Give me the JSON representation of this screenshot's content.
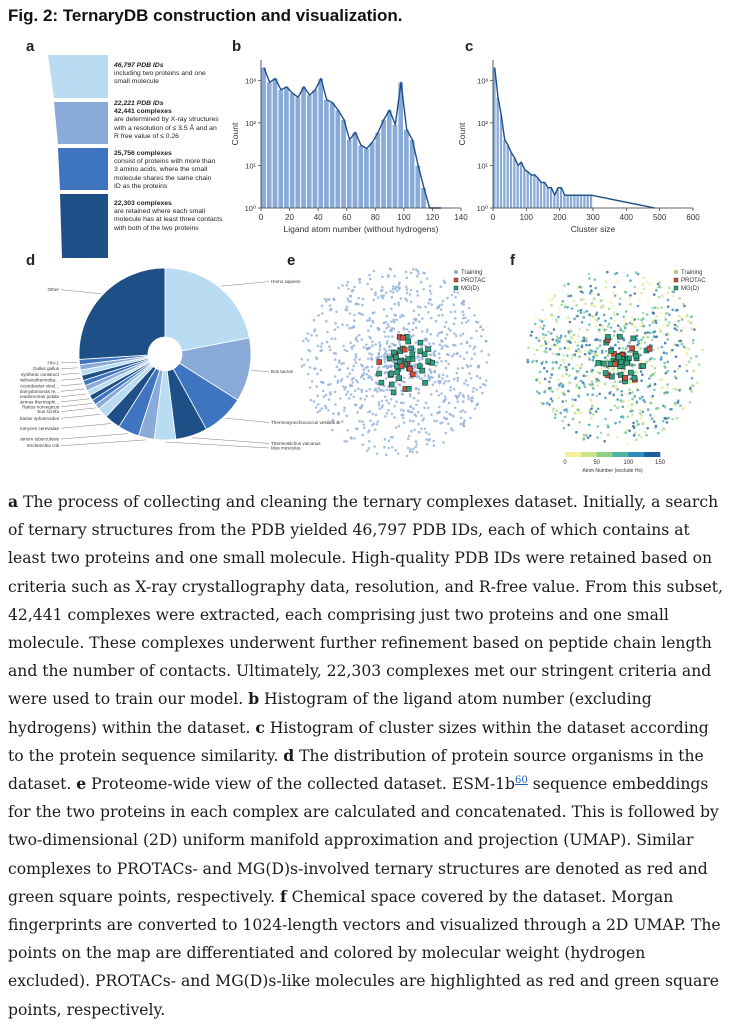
{
  "figure_title": "Fig. 2: TernaryDB construction and visualization.",
  "panel_labels": {
    "a": "a",
    "b": "b",
    "c": "c",
    "d": "d",
    "e": "e",
    "f": "f"
  },
  "funnel": {
    "colors": [
      "#b9dcf2",
      "#8aabd8",
      "#3f75c0",
      "#1e4f86"
    ],
    "steps": [
      {
        "bold": "46,797 PDB IDs",
        "text": [
          "including two proteins and one",
          "small molecule"
        ]
      },
      {
        "bold": "22,221 PDB IDs",
        "bold2": "42,441 complexes",
        "text": [
          "are determined by X-ray structures",
          "with a resolution of ≤ 3.5 Å and an",
          "R free value of ≤ 0.26"
        ]
      },
      {
        "bold": "25,756 complexes",
        "text": [
          "consist of proteins with more than",
          "3 amino acids, where the small",
          "molecule shares the same chain",
          "ID as the proteins"
        ]
      },
      {
        "bold": "22,303 complexes",
        "text": [
          "are retained where each small",
          "molecule has at least three contacts",
          "with both of the two proteins"
        ]
      }
    ]
  },
  "chart_data": [
    {
      "type": "bar",
      "panel": "b",
      "scale": "log",
      "xlabel": "Ligand atom number (without hydrogens)",
      "ylabel": "Count",
      "xlim": [
        0,
        140
      ],
      "ylim": [
        1,
        3000
      ],
      "xticks": [
        "0",
        "20",
        "40",
        "60",
        "80",
        "100",
        "120",
        "140"
      ],
      "yticks": [
        "10⁰",
        "10¹",
        "10²",
        "10³"
      ],
      "bin_width": 4,
      "bin_starts": [
        0,
        4,
        8,
        12,
        16,
        20,
        24,
        28,
        32,
        36,
        40,
        44,
        48,
        52,
        56,
        60,
        64,
        68,
        72,
        76,
        80,
        84,
        88,
        92,
        96,
        100,
        104,
        108,
        112,
        116,
        120,
        124
      ],
      "values": [
        2000,
        900,
        1100,
        600,
        700,
        500,
        400,
        700,
        450,
        600,
        1100,
        350,
        300,
        200,
        120,
        40,
        60,
        30,
        25,
        35,
        60,
        120,
        200,
        90,
        900,
        70,
        40,
        10,
        3,
        1,
        1,
        1
      ],
      "color": "#8aabd8",
      "line_color": "#1e4f86"
    },
    {
      "type": "bar",
      "panel": "c",
      "scale": "log",
      "xlabel": "Cluster size",
      "ylabel": "Count",
      "xlim": [
        0,
        600
      ],
      "ylim": [
        1,
        3000
      ],
      "xticks": [
        "0",
        "100",
        "200",
        "300",
        "400",
        "500",
        "600"
      ],
      "yticks": [
        "10⁰",
        "10¹",
        "10²",
        "10³"
      ],
      "bin_width": 10,
      "bin_starts": [
        0,
        10,
        20,
        30,
        40,
        50,
        60,
        70,
        80,
        90,
        100,
        110,
        120,
        130,
        140,
        150,
        160,
        170,
        180,
        190,
        200,
        210,
        220,
        230,
        240,
        250,
        260,
        270,
        280,
        290,
        480
      ],
      "values": [
        2000,
        400,
        150,
        40,
        30,
        20,
        15,
        10,
        12,
        8,
        7,
        6,
        6,
        5,
        4,
        4,
        3,
        3,
        2,
        3,
        3,
        2,
        2,
        2,
        2,
        2,
        2,
        2,
        2,
        2,
        1
      ],
      "color": "#8aabd8",
      "line_color": "#1e4f86"
    },
    {
      "type": "pie",
      "panel": "d",
      "labels": [
        "Homo sapiens",
        "Bos taurus",
        "Thermosynechococcus vestitus BP",
        "Thermostichus vulcanus",
        "Mus musculus",
        "Escherichia coli",
        "Mycobacterium tuberculosis",
        "Saccharomyces cerevisiae",
        "Cereibacter sphaeroides",
        "Sus scrofa",
        "Rattus norvegicus",
        "Thermus thermophi...",
        "Pseudomonas putida",
        "Chlamydomonas re...",
        "Acetobacter vinel...",
        "Methanothermoba...",
        "synthetic construct",
        "Gallus gallus",
        "HIV-1",
        "Other"
      ],
      "values": [
        22,
        12,
        8,
        6,
        4,
        3,
        4,
        3,
        2,
        1,
        1,
        1,
        1,
        1,
        1,
        1,
        1,
        1,
        1,
        26
      ],
      "colors": [
        "#b9dcf2",
        "#8aabd8",
        "#3f75c0",
        "#1e4f86",
        "#b9dcf2",
        "#8aabd8",
        "#3f75c0",
        "#1e4f86",
        "#b9dcf2",
        "#8aabd8",
        "#3f75c0",
        "#1e4f86",
        "#b9dcf2",
        "#8aabd8",
        "#3f75c0",
        "#1e4f86",
        "#b9dcf2",
        "#8aabd8",
        "#3f75c0",
        "#1e4f86"
      ]
    }
  ],
  "umap_e": {
    "legend": [
      "Training",
      "PROTAC",
      "MG(D)"
    ],
    "colors": [
      "#8aabd8",
      "#d64b3b",
      "#26a37e"
    ]
  },
  "umap_f": {
    "legend": [
      "Training",
      "PROTAC",
      "MG(D)"
    ],
    "colors": [
      "#a8c87a",
      "#d64b3b",
      "#26a37e"
    ],
    "colorbar_ticks": [
      "0",
      "50",
      "100",
      "150"
    ],
    "colorbar_label": "Atom Number (exclude Hs)"
  },
  "caption": {
    "a_label": "a",
    "a_text": " The process of collecting and cleaning the ternary complexes dataset. Initially, a search of ternary structures from the PDB yielded 46,797 PDB IDs, each of which contains at least two proteins and one small molecule. High-quality PDB IDs were retained based on criteria such as X-ray crystallography data, resolution, and R-free value. From this subset, 42,441 complexes were extracted, each comprising just two proteins and one small molecule. These complexes underwent further refinement based on peptide chain length and the number of contacts. Ultimately, 22,303 complexes met our stringent criteria and were used to train our model. ",
    "b_label": "b",
    "b_text": " Histogram of the ligand atom number (excluding hydrogens) within the dataset. ",
    "c_label": "c",
    "c_text": " Histogram of cluster sizes within the dataset according to the protein sequence similarity. ",
    "d_label": "d",
    "d_text": " The distribution of protein source organisms in the dataset. ",
    "e_label": "e",
    "e_text1": " Proteome-wide view of the collected dataset. ESM-1b",
    "e_ref": "60",
    "e_text2": " sequence embeddings for the two proteins in each complex are calculated and concatenated. This is followed by two-dimensional (2D) uniform manifold approximation and projection (UMAP). Similar complexes to PROTACs- and MG(D)s-involved ternary structures are denoted as red and green square points, respectively. ",
    "f_label": "f",
    "f_text": " Chemical space covered by the dataset. Morgan fingerprints are converted to 1024-length vectors and visualized through a 2D UMAP. The points on the map are differentiated and colored by molecular weight (hydrogen excluded). PROTACs- and MG(D)s-like molecules are highlighted as red and green square points, respectively."
  }
}
